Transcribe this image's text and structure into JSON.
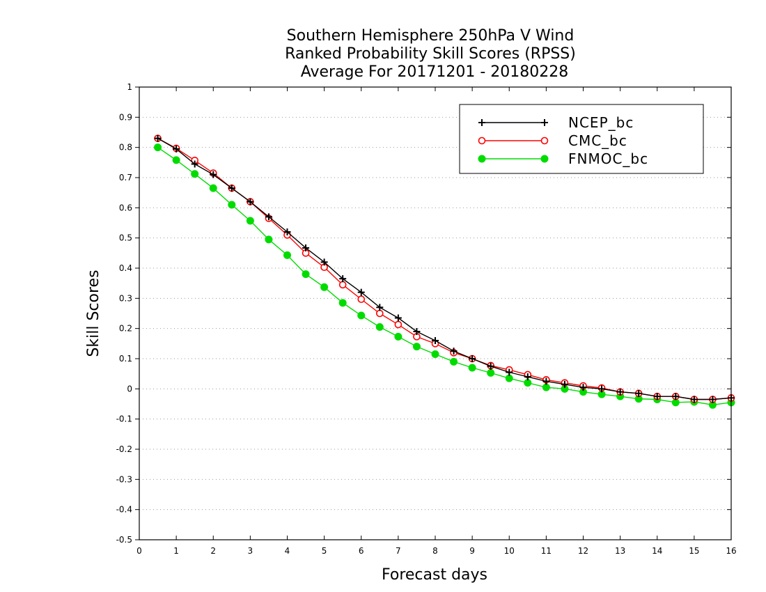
{
  "chart_data": {
    "type": "line",
    "title": [
      "Southern Hemisphere 250hPa V Wind",
      "Ranked Probability Skill Scores (RPSS)",
      "Average For 20171201 - 20180228"
    ],
    "xlabel": "Forecast days",
    "ylabel": "Skill Scores",
    "xlim": [
      0,
      16
    ],
    "ylim": [
      -0.5,
      1
    ],
    "xticks": [
      "0",
      "1",
      "2",
      "3",
      "4",
      "5",
      "6",
      "7",
      "8",
      "9",
      "10",
      "11",
      "12",
      "13",
      "14",
      "15",
      "16"
    ],
    "yticks": [
      "1",
      "0.9",
      "0.8",
      "0.7",
      "0.6",
      "0.5",
      "0.4",
      "0.3",
      "0.2",
      "0.1",
      "0",
      "-0.1",
      "-0.2",
      "-0.3",
      "-0.4",
      "-0.5"
    ],
    "ytick_values": [
      1,
      0.9,
      0.8,
      0.7,
      0.6,
      0.5,
      0.4,
      0.3,
      0.2,
      0.1,
      0,
      -0.1,
      -0.2,
      -0.3,
      -0.4,
      -0.5
    ],
    "grid": true,
    "legend_position": "top-right",
    "x": [
      0.5,
      1.0,
      1.5,
      2.0,
      2.5,
      3.0,
      3.5,
      4.0,
      4.5,
      5.0,
      5.5,
      6.0,
      6.5,
      7.0,
      7.5,
      8.0,
      8.5,
      9.0,
      9.5,
      10.0,
      10.5,
      11.0,
      11.5,
      12.0,
      12.5,
      13.0,
      13.5,
      14.0,
      14.5,
      15.0,
      15.5,
      16.0
    ],
    "series": [
      {
        "name": "NCEP_bc",
        "color": "#000000",
        "marker": "plus",
        "values": [
          0.83,
          0.795,
          0.745,
          0.71,
          0.665,
          0.62,
          0.57,
          0.52,
          0.467,
          0.42,
          0.365,
          0.32,
          0.27,
          0.235,
          0.19,
          0.16,
          0.125,
          0.1,
          0.075,
          0.055,
          0.04,
          0.025,
          0.015,
          0.005,
          0.0,
          -0.01,
          -0.015,
          -0.025,
          -0.025,
          -0.035,
          -0.035,
          -0.03
        ]
      },
      {
        "name": "CMC_bc",
        "color": "#ff0000",
        "marker": "open-circle",
        "values": [
          0.83,
          0.797,
          0.757,
          0.715,
          0.665,
          0.62,
          0.565,
          0.51,
          0.45,
          0.403,
          0.345,
          0.297,
          0.25,
          0.213,
          0.173,
          0.15,
          0.12,
          0.1,
          0.077,
          0.063,
          0.047,
          0.03,
          0.02,
          0.01,
          0.003,
          -0.01,
          -0.015,
          -0.025,
          -0.025,
          -0.035,
          -0.035,
          -0.03
        ]
      },
      {
        "name": "FNMOC_bc",
        "color": "#00dc00",
        "marker": "filled-circle",
        "values": [
          0.8,
          0.758,
          0.712,
          0.665,
          0.61,
          0.557,
          0.495,
          0.443,
          0.38,
          0.337,
          0.285,
          0.243,
          0.205,
          0.173,
          0.14,
          0.115,
          0.09,
          0.07,
          0.053,
          0.035,
          0.02,
          0.005,
          0.0,
          -0.01,
          -0.018,
          -0.025,
          -0.033,
          -0.035,
          -0.045,
          -0.043,
          -0.053,
          -0.045
        ]
      }
    ]
  }
}
